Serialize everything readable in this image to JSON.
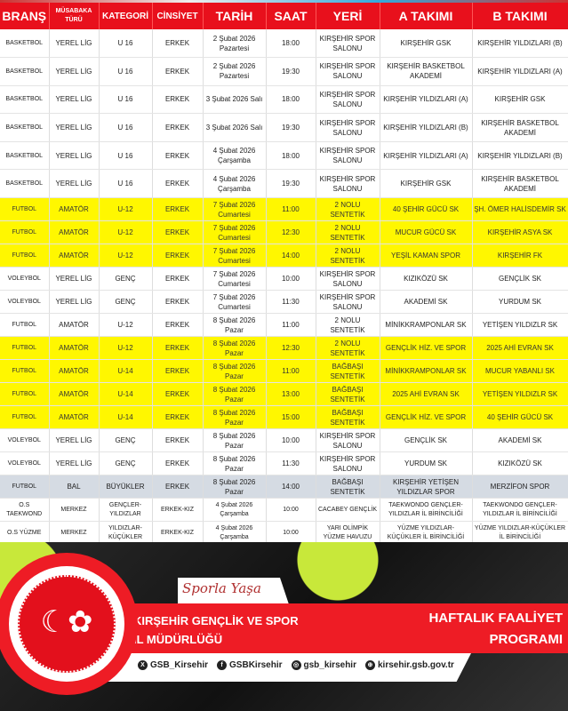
{
  "headers": [
    "BRANŞ",
    "MÜSABAKA TÜRÜ",
    "KATEGORİ",
    "CİNSİYET",
    "TARİH",
    "SAAT",
    "YERİ",
    "A TAKIMI",
    "B TAKIMI"
  ],
  "colors": {
    "header": "#e8101c",
    "highlight_yellow": "#fff700",
    "highlight_gray": "#d5dbe3",
    "brand_red": "#ee1c25"
  },
  "rows": [
    {
      "style": "white",
      "cells": [
        "BASKETBOL",
        "YEREL LİG",
        "U 16",
        "ERKEK",
        "2 Şubat 2026 Pazartesi",
        "18:00",
        "KIRŞEHİR SPOR SALONU",
        "KIRŞEHİR GSK",
        "KIRŞEHİR YILDIZLARI (B)"
      ]
    },
    {
      "style": "white",
      "cells": [
        "BASKETBOL",
        "YEREL LİG",
        "U 16",
        "ERKEK",
        "2 Şubat 2026 Pazartesi",
        "19:30",
        "KIRŞEHİR SPOR SALONU",
        "KIRŞEHİR BASKETBOL AKADEMİ",
        "KIRŞEHİR YILDIZLARI (A)"
      ]
    },
    {
      "style": "white",
      "cells": [
        "BASKETBOL",
        "YEREL LİG",
        "U 16",
        "ERKEK",
        "3 Şubat 2026 Salı",
        "18:00",
        "KIRŞEHİR SPOR SALONU",
        "KIRŞEHİR YILDIZLARI (A)",
        "KIRŞEHİR GSK"
      ]
    },
    {
      "style": "white",
      "cells": [
        "BASKETBOL",
        "YEREL LİG",
        "U 16",
        "ERKEK",
        "3 Şubat 2026 Salı",
        "19:30",
        "KIRŞEHİR SPOR SALONU",
        "KIRŞEHİR YILDIZLARI (B)",
        "KIRŞEHİR BASKETBOL AKADEMİ"
      ]
    },
    {
      "style": "white",
      "cells": [
        "BASKETBOL",
        "YEREL LİG",
        "U 16",
        "ERKEK",
        "4 Şubat 2026 Çarşamba",
        "18:00",
        "KIRŞEHİR SPOR SALONU",
        "KIRŞEHİR YILDIZLARI (A)",
        "KIRŞEHİR YILDIZLARI (B)"
      ]
    },
    {
      "style": "white",
      "cells": [
        "BASKETBOL",
        "YEREL LİG",
        "U 16",
        "ERKEK",
        "4 Şubat 2026 Çarşamba",
        "19:30",
        "KIRŞEHİR SPOR SALONU",
        "KIRŞEHİR GSK",
        "KIRŞEHİR BASKETBOL AKADEMİ"
      ]
    },
    {
      "style": "yellow",
      "cells": [
        "FUTBOL",
        "AMATÖR",
        "U-12",
        "ERKEK",
        "7 Şubat 2026 Cumartesi",
        "11:00",
        "2 NOLU SENTETİK",
        "40 ŞEHİR GÜCÜ SK",
        "ŞH. ÖMER HALİSDEMİR SK"
      ]
    },
    {
      "style": "yellow",
      "cells": [
        "FUTBOL",
        "AMATÖR",
        "U-12",
        "ERKEK",
        "7 Şubat 2026 Cumartesi",
        "12:30",
        "2 NOLU SENTETİK",
        "MUCUR GÜCÜ SK",
        "KIRŞEHİR ASYA SK"
      ]
    },
    {
      "style": "yellow",
      "cells": [
        "FUTBOL",
        "AMATÖR",
        "U-12",
        "ERKEK",
        "7 Şubat 2026 Cumartesi",
        "14:00",
        "2 NOLU SENTETİK",
        "YEŞİL KAMAN SPOR",
        "KIRŞEHİR FK"
      ]
    },
    {
      "style": "white",
      "cells": [
        "VOLEYBOL",
        "YEREL LİG",
        "GENÇ",
        "ERKEK",
        "7 Şubat 2026 Cumartesi",
        "10:00",
        "KIRŞEHİR SPOR SALONU",
        "KIZIKÖZÜ SK",
        "GENÇLİK SK"
      ]
    },
    {
      "style": "white",
      "cells": [
        "VOLEYBOL",
        "YEREL LİG",
        "GENÇ",
        "ERKEK",
        "7 Şubat 2026 Cumartesi",
        "11:30",
        "KIRŞEHİR SPOR SALONU",
        "AKADEMİ SK",
        "YURDUM SK"
      ]
    },
    {
      "style": "white",
      "cells": [
        "FUTBOL",
        "AMATÖR",
        "U-12",
        "ERKEK",
        "8 Şubat 2026 Pazar",
        "11:00",
        "2 NOLU SENTETİK",
        "MİNİKKRAMPONLAR SK",
        "YETİŞEN YILDIZLR SK"
      ]
    },
    {
      "style": "yellow",
      "cells": [
        "FUTBOL",
        "AMATÖR",
        "U-12",
        "ERKEK",
        "8 Şubat 2026 Pazar",
        "12:30",
        "2 NOLU SENTETİK",
        "GENÇLİK HİZ. VE SPOR",
        "2025 AHİ EVRAN SK"
      ]
    },
    {
      "style": "yellow",
      "cells": [
        "FUTBOL",
        "AMATÖR",
        "U-14",
        "ERKEK",
        "8 Şubat 2026 Pazar",
        "11:00",
        "BAĞBAŞI SENTETİK",
        "MİNİKKRAMPONLAR SK",
        "MUCUR YABANLI SK"
      ]
    },
    {
      "style": "yellow",
      "cells": [
        "FUTBOL",
        "AMATÖR",
        "U-14",
        "ERKEK",
        "8 Şubat 2026 Pazar",
        "13:00",
        "BAĞBAŞI SENTETİK",
        "2025 AHİ EVRAN SK",
        "YETİŞEN YILDIZLR SK"
      ]
    },
    {
      "style": "yellow",
      "cells": [
        "FUTBOL",
        "AMATÖR",
        "U-14",
        "ERKEK",
        "8 Şubat 2026 Pazar",
        "15:00",
        "BAĞBAŞI SENTETİK",
        "GENÇLİK HİZ. VE SPOR",
        "40 ŞEHİR GÜCÜ SK"
      ]
    },
    {
      "style": "white",
      "cells": [
        "VOLEYBOL",
        "YEREL LİG",
        "GENÇ",
        "ERKEK",
        "8 Şubat 2026 Pazar",
        "10:00",
        "KIRŞEHİR SPOR SALONU",
        "GENÇLİK SK",
        "AKADEMİ SK"
      ]
    },
    {
      "style": "white",
      "cells": [
        "VOLEYBOL",
        "YEREL LİG",
        "GENÇ",
        "ERKEK",
        "8 Şubat 2026 Pazar",
        "11:30",
        "KIRŞEHİR SPOR SALONU",
        "YURDUM SK",
        "KIZIKÖZÜ SK"
      ]
    },
    {
      "style": "gray",
      "cells": [
        "FUTBOL",
        "BAL",
        "BÜYÜKLER",
        "ERKEK",
        "8 Şubat 2026 Pazar",
        "14:00",
        "BAĞBAŞI SENTETİK",
        "KIRŞEHİR YETİŞEN YILDIZLAR SPOR",
        "MERZİFON SPOR"
      ]
    },
    {
      "style": "small",
      "cells": [
        "O.S TAEKWOND",
        "MERKEZ",
        "GENÇLER-YILDIZLAR",
        "ERKEK-KIZ",
        "4 Şubat 2026 Çarşamba",
        "10:00",
        "CACABEY GENÇLİK",
        "TAEKWONDO GENÇLER-YILDIZLAR İL BİRİNCİLİĞİ",
        "TAEKWONDO GENÇLER-YILDIZLAR İL BİRİNCİLİĞİ"
      ]
    },
    {
      "style": "small",
      "cells": [
        "O.S YÜZME",
        "MERKEZ",
        "YILDIZLAR-KÜÇÜKLER",
        "ERKEK-KIZ",
        "4 Şubat 2026 Çarşamba",
        "10:00",
        "YARI OLİMPİK YÜZME HAVUZU",
        "YÜZME YILDIZLAR-KÜÇÜKLER İL BİRİNCİLİĞİ",
        "YÜZME YILDIZLAR-KÜÇÜKLER İL BİRİNCİLİĞİ"
      ]
    }
  ],
  "footer": {
    "slogan": "Sporla Yaşa",
    "org_line1": "KIRŞEHİR GENÇLİK VE SPOR",
    "org_line2": "İL MÜDÜRLÜĞÜ",
    "program_line1": "HAFTALIK FAALİYET",
    "program_line2": "PROGRAMI",
    "logo_text": "TÜRKİYE CUMHURİYETİ GENÇLİK VE SPOR BAKANLIĞI",
    "social": [
      {
        "icon": "x-icon",
        "glyph": "X",
        "label": "GSB_Kirsehir"
      },
      {
        "icon": "facebook-icon",
        "glyph": "f",
        "label": "GSBKirsehir"
      },
      {
        "icon": "instagram-icon",
        "glyph": "◎",
        "label": "gsb_kirsehir"
      },
      {
        "icon": "globe-icon",
        "glyph": "⊕",
        "label": "kirsehir.gsb.gov.tr"
      }
    ]
  }
}
